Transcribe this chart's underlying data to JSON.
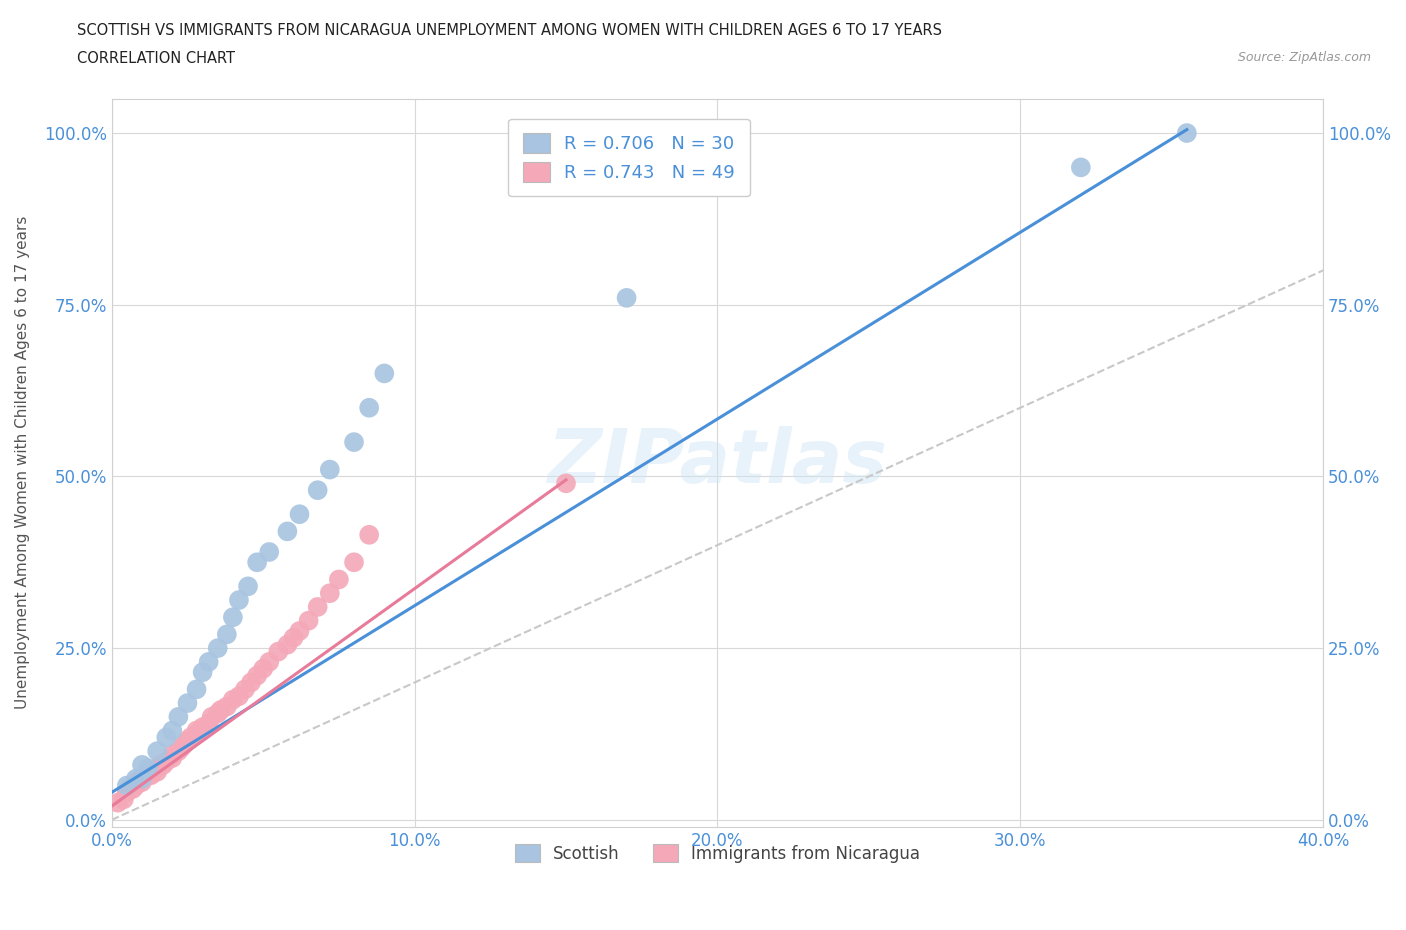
{
  "title_line1": "SCOTTISH VS IMMIGRANTS FROM NICARAGUA UNEMPLOYMENT AMONG WOMEN WITH CHILDREN AGES 6 TO 17 YEARS",
  "title_line2": "CORRELATION CHART",
  "source_text": "Source: ZipAtlas.com",
  "ylabel": "Unemployment Among Women with Children Ages 6 to 17 years",
  "xlim": [
    0.0,
    0.4
  ],
  "ylim": [
    -0.01,
    1.05
  ],
  "xtick_labels": [
    "0.0%",
    "10.0%",
    "20.0%",
    "30.0%",
    "40.0%"
  ],
  "xtick_values": [
    0.0,
    0.1,
    0.2,
    0.3,
    0.4
  ],
  "ytick_labels": [
    "0.0%",
    "25.0%",
    "50.0%",
    "75.0%",
    "100.0%"
  ],
  "ytick_values": [
    0.0,
    0.25,
    0.5,
    0.75,
    1.0
  ],
  "scottish_color": "#a8c4e0",
  "nicaragua_color": "#f4a8b8",
  "scottish_R": 0.706,
  "scottish_N": 30,
  "nicaragua_R": 0.743,
  "nicaragua_N": 49,
  "legend_R_color": "#4a90d9",
  "line_blue_color": "#4a90d9",
  "line_pink_color": "#e87a9a",
  "line_dashed_color": "#c8c8c8",
  "watermark": "ZIPatlas",
  "scottish_x": [
    0.005,
    0.008,
    0.01,
    0.01,
    0.012,
    0.015,
    0.018,
    0.02,
    0.022,
    0.025,
    0.028,
    0.03,
    0.032,
    0.035,
    0.038,
    0.04,
    0.042,
    0.045,
    0.048,
    0.052,
    0.058,
    0.062,
    0.068,
    0.072,
    0.08,
    0.085,
    0.09,
    0.17,
    0.32,
    0.355
  ],
  "scottish_y": [
    0.05,
    0.06,
    0.06,
    0.08,
    0.075,
    0.1,
    0.12,
    0.13,
    0.15,
    0.17,
    0.19,
    0.215,
    0.23,
    0.25,
    0.27,
    0.295,
    0.32,
    0.34,
    0.375,
    0.39,
    0.42,
    0.445,
    0.48,
    0.51,
    0.55,
    0.6,
    0.65,
    0.76,
    0.95,
    1.0
  ],
  "nicaragua_x": [
    0.002,
    0.004,
    0.005,
    0.006,
    0.007,
    0.008,
    0.008,
    0.01,
    0.01,
    0.012,
    0.013,
    0.015,
    0.015,
    0.016,
    0.017,
    0.018,
    0.02,
    0.02,
    0.022,
    0.023,
    0.024,
    0.025,
    0.026,
    0.028,
    0.028,
    0.03,
    0.032,
    0.033,
    0.035,
    0.036,
    0.038,
    0.04,
    0.042,
    0.044,
    0.046,
    0.048,
    0.05,
    0.052,
    0.055,
    0.058,
    0.06,
    0.062,
    0.065,
    0.068,
    0.072,
    0.075,
    0.08,
    0.085,
    0.15
  ],
  "nicaragua_y": [
    0.025,
    0.03,
    0.04,
    0.045,
    0.045,
    0.05,
    0.055,
    0.055,
    0.06,
    0.065,
    0.065,
    0.07,
    0.075,
    0.08,
    0.08,
    0.085,
    0.09,
    0.095,
    0.1,
    0.105,
    0.11,
    0.115,
    0.12,
    0.125,
    0.13,
    0.135,
    0.14,
    0.15,
    0.155,
    0.16,
    0.165,
    0.175,
    0.18,
    0.19,
    0.2,
    0.21,
    0.22,
    0.23,
    0.245,
    0.255,
    0.265,
    0.275,
    0.29,
    0.31,
    0.33,
    0.35,
    0.375,
    0.415,
    0.49
  ],
  "blue_line_x": [
    0.0,
    0.355
  ],
  "blue_line_y": [
    0.04,
    1.005
  ],
  "pink_line_x": [
    0.0,
    0.15
  ],
  "pink_line_y": [
    0.02,
    0.495
  ],
  "dashed_line_x": [
    0.0,
    0.4
  ],
  "dashed_line_y": [
    0.0,
    0.8
  ]
}
